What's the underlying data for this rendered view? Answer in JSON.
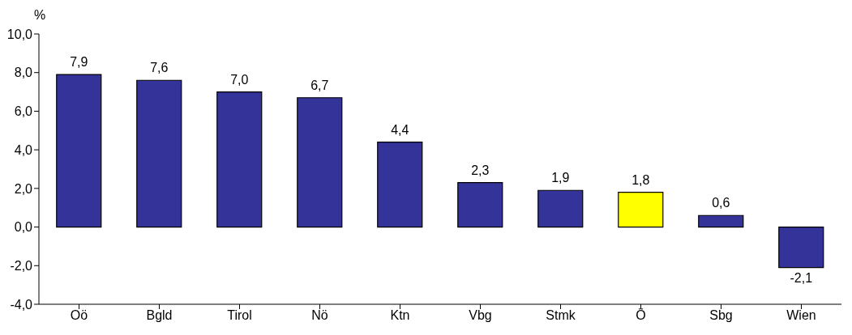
{
  "chart_data": {
    "type": "bar",
    "ylabel": "%",
    "categories": [
      "Oö",
      "Bgld",
      "Tirol",
      "Nö",
      "Ktn",
      "Vbg",
      "Stmk",
      "Ö",
      "Sbg",
      "Wien"
    ],
    "values": [
      7.9,
      7.6,
      7.0,
      6.7,
      4.4,
      2.3,
      1.9,
      1.8,
      0.6,
      -2.1
    ],
    "colors": [
      "#333399",
      "#333399",
      "#333399",
      "#333399",
      "#333399",
      "#333399",
      "#333399",
      "#ffff00",
      "#333399",
      "#333399"
    ],
    "value_labels": [
      "7,9",
      "7,6",
      "7,0",
      "6,7",
      "4,4",
      "2,3",
      "1,9",
      "1,8",
      "0,6",
      "-2,1"
    ],
    "ylim": [
      -4,
      10
    ],
    "yticks": [
      {
        "value": -4,
        "label": "-4,0"
      },
      {
        "value": -2,
        "label": "-2,0"
      },
      {
        "value": 0,
        "label": "0,0"
      },
      {
        "value": 2,
        "label": "2,0"
      },
      {
        "value": 4,
        "label": "4,0"
      },
      {
        "value": 6,
        "label": "6,0"
      },
      {
        "value": 8,
        "label": "8,0"
      },
      {
        "value": 10,
        "label": "10,0"
      }
    ],
    "grid": false,
    "legend": false
  }
}
